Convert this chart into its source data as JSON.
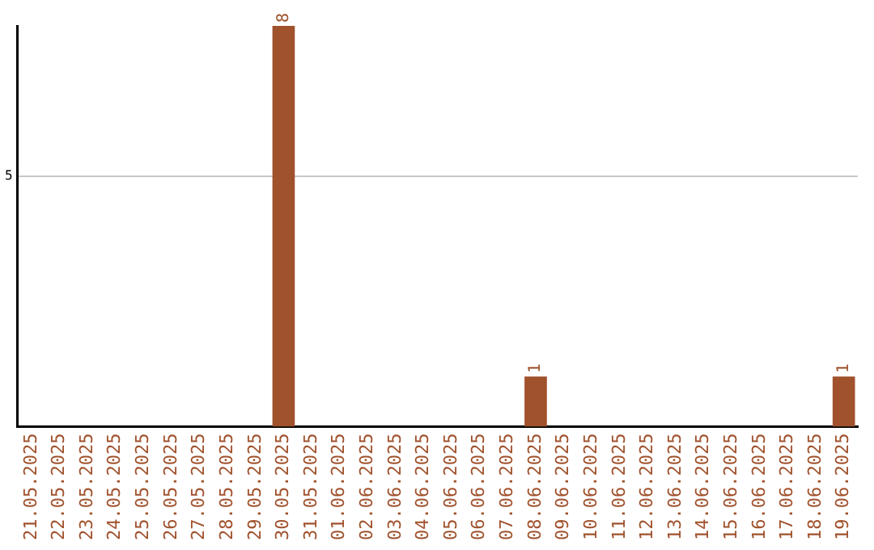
{
  "chart_data": {
    "type": "bar",
    "categories": [
      "21.05.2025",
      "22.05.2025",
      "23.05.2025",
      "24.05.2025",
      "25.05.2025",
      "26.05.2025",
      "27.05.2025",
      "28.05.2025",
      "29.05.2025",
      "30.05.2025",
      "31.05.2025",
      "01.06.2025",
      "02.06.2025",
      "03.06.2025",
      "04.06.2025",
      "05.06.2025",
      "06.06.2025",
      "07.06.2025",
      "08.06.2025",
      "09.06.2025",
      "10.06.2025",
      "11.06.2025",
      "12.06.2025",
      "13.06.2025",
      "14.06.2025",
      "15.06.2025",
      "16.06.2025",
      "17.06.2025",
      "18.06.2025",
      "19.06.2025"
    ],
    "values": [
      0,
      0,
      0,
      0,
      0,
      0,
      0,
      0,
      0,
      8,
      0,
      0,
      0,
      0,
      0,
      0,
      0,
      0,
      1,
      0,
      0,
      0,
      0,
      0,
      0,
      0,
      0,
      0,
      0,
      1
    ],
    "value_labels": [
      null,
      null,
      null,
      null,
      null,
      null,
      null,
      null,
      null,
      "8",
      null,
      null,
      null,
      null,
      null,
      null,
      null,
      null,
      "1",
      null,
      null,
      null,
      null,
      null,
      null,
      null,
      null,
      null,
      null,
      "1"
    ],
    "color": "#a0522d",
    "ylim": [
      0,
      8
    ],
    "yticks": [
      5
    ],
    "grid": "y",
    "legend": false
  }
}
